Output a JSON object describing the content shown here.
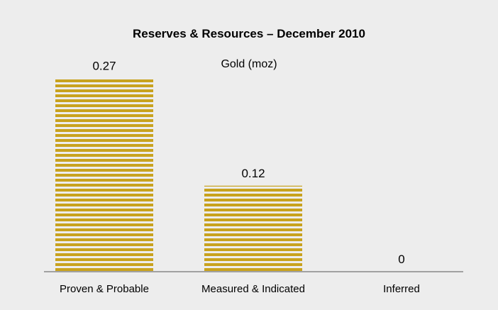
{
  "chart_data": {
    "type": "bar",
    "title": "Reserves & Resources – December 2010",
    "subtitle": "Gold (moz)",
    "categories": [
      "Proven & Probable",
      "Measured & Indicated",
      "Inferred"
    ],
    "values": [
      0.27,
      0.12,
      0
    ],
    "value_labels": [
      "0.27",
      "0.12",
      "0"
    ],
    "ylim": [
      0,
      0.3
    ],
    "grid": false,
    "legend": "none",
    "bar_color": "#c8a21e",
    "background_color": "#ededed"
  }
}
